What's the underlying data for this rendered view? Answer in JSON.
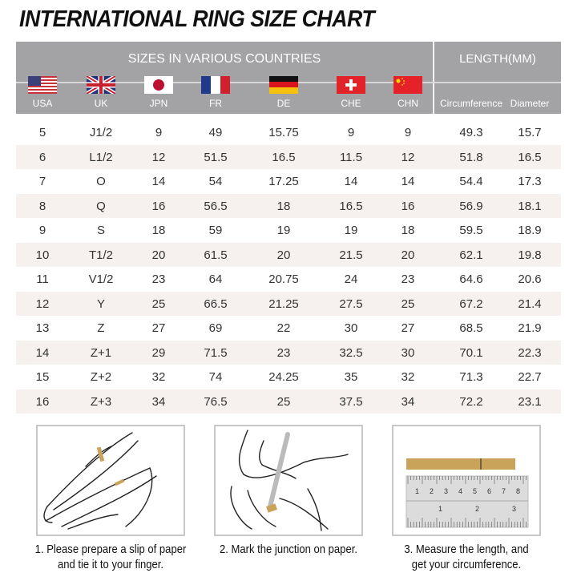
{
  "title": "INTERNATIONAL RING SIZE CHART",
  "header": {
    "countries_title": "SIZES IN VARIOUS COUNTRIES",
    "length_title": "LENGTH(MM)",
    "columns": [
      {
        "label": "USA",
        "flag": "usa-flag"
      },
      {
        "label": "UK",
        "flag": "uk-flag"
      },
      {
        "label": "JPN",
        "flag": "japan-flag"
      },
      {
        "label": "FR",
        "flag": "france-flag"
      },
      {
        "label": "DE",
        "flag": "germany-flag"
      },
      {
        "label": "CHE",
        "flag": "switzerland-flag"
      },
      {
        "label": "CHN",
        "flag": "china-flag"
      },
      {
        "label": "Circumference"
      },
      {
        "label": "Diameter"
      }
    ]
  },
  "rows": [
    [
      "5",
      "J1/2",
      "9",
      "49",
      "15.75",
      "9",
      "9",
      "49.3",
      "15.7"
    ],
    [
      "6",
      "L1/2",
      "12",
      "51.5",
      "16.5",
      "11.5",
      "12",
      "51.8",
      "16.5"
    ],
    [
      "7",
      "O",
      "14",
      "54",
      "17.25",
      "14",
      "14",
      "54.4",
      "17.3"
    ],
    [
      "8",
      "Q",
      "16",
      "56.5",
      "18",
      "16.5",
      "16",
      "56.9",
      "18.1"
    ],
    [
      "9",
      "S",
      "18",
      "59",
      "19",
      "19",
      "18",
      "59.5",
      "18.9"
    ],
    [
      "10",
      "T1/2",
      "20",
      "61.5",
      "20",
      "21.5",
      "20",
      "62.1",
      "19.8"
    ],
    [
      "11",
      "V1/2",
      "23",
      "64",
      "20.75",
      "24",
      "23",
      "64.6",
      "20.6"
    ],
    [
      "12",
      "Y",
      "25",
      "66.5",
      "21.25",
      "27.5",
      "25",
      "67.2",
      "21.4"
    ],
    [
      "13",
      "Z",
      "27",
      "69",
      "22",
      "30",
      "27",
      "68.5",
      "21.9"
    ],
    [
      "14",
      "Z+1",
      "29",
      "71.5",
      "23",
      "32.5",
      "30",
      "70.1",
      "22.3"
    ],
    [
      "15",
      "Z+2",
      "32",
      "74",
      "24.25",
      "35",
      "32",
      "71.3",
      "22.7"
    ],
    [
      "16",
      "Z+3",
      "34",
      "76.5",
      "25",
      "37.5",
      "34",
      "72.2",
      "23.1"
    ]
  ],
  "steps": [
    {
      "line1": "1. Please prepare a slip of paper",
      "line2": "and tie it to your finger.",
      "icon": "hand-with-paper-icon"
    },
    {
      "line1": "2. Mark the junction on paper.",
      "line2": "",
      "icon": "marking-paper-icon"
    },
    {
      "line1": "3. Measure the length, and",
      "line2": "get your circumference.",
      "icon": "ruler-icon"
    }
  ],
  "ruler": {
    "top_marks": [
      "1",
      "2",
      "3",
      "4",
      "5",
      "6",
      "7",
      "8"
    ],
    "bottom_marks": [
      "1",
      "2",
      "3"
    ]
  },
  "colors": {
    "header_bg": "#a3a3a5",
    "alt_row": "#f6f1ef",
    "paper": "#c9a35a"
  }
}
